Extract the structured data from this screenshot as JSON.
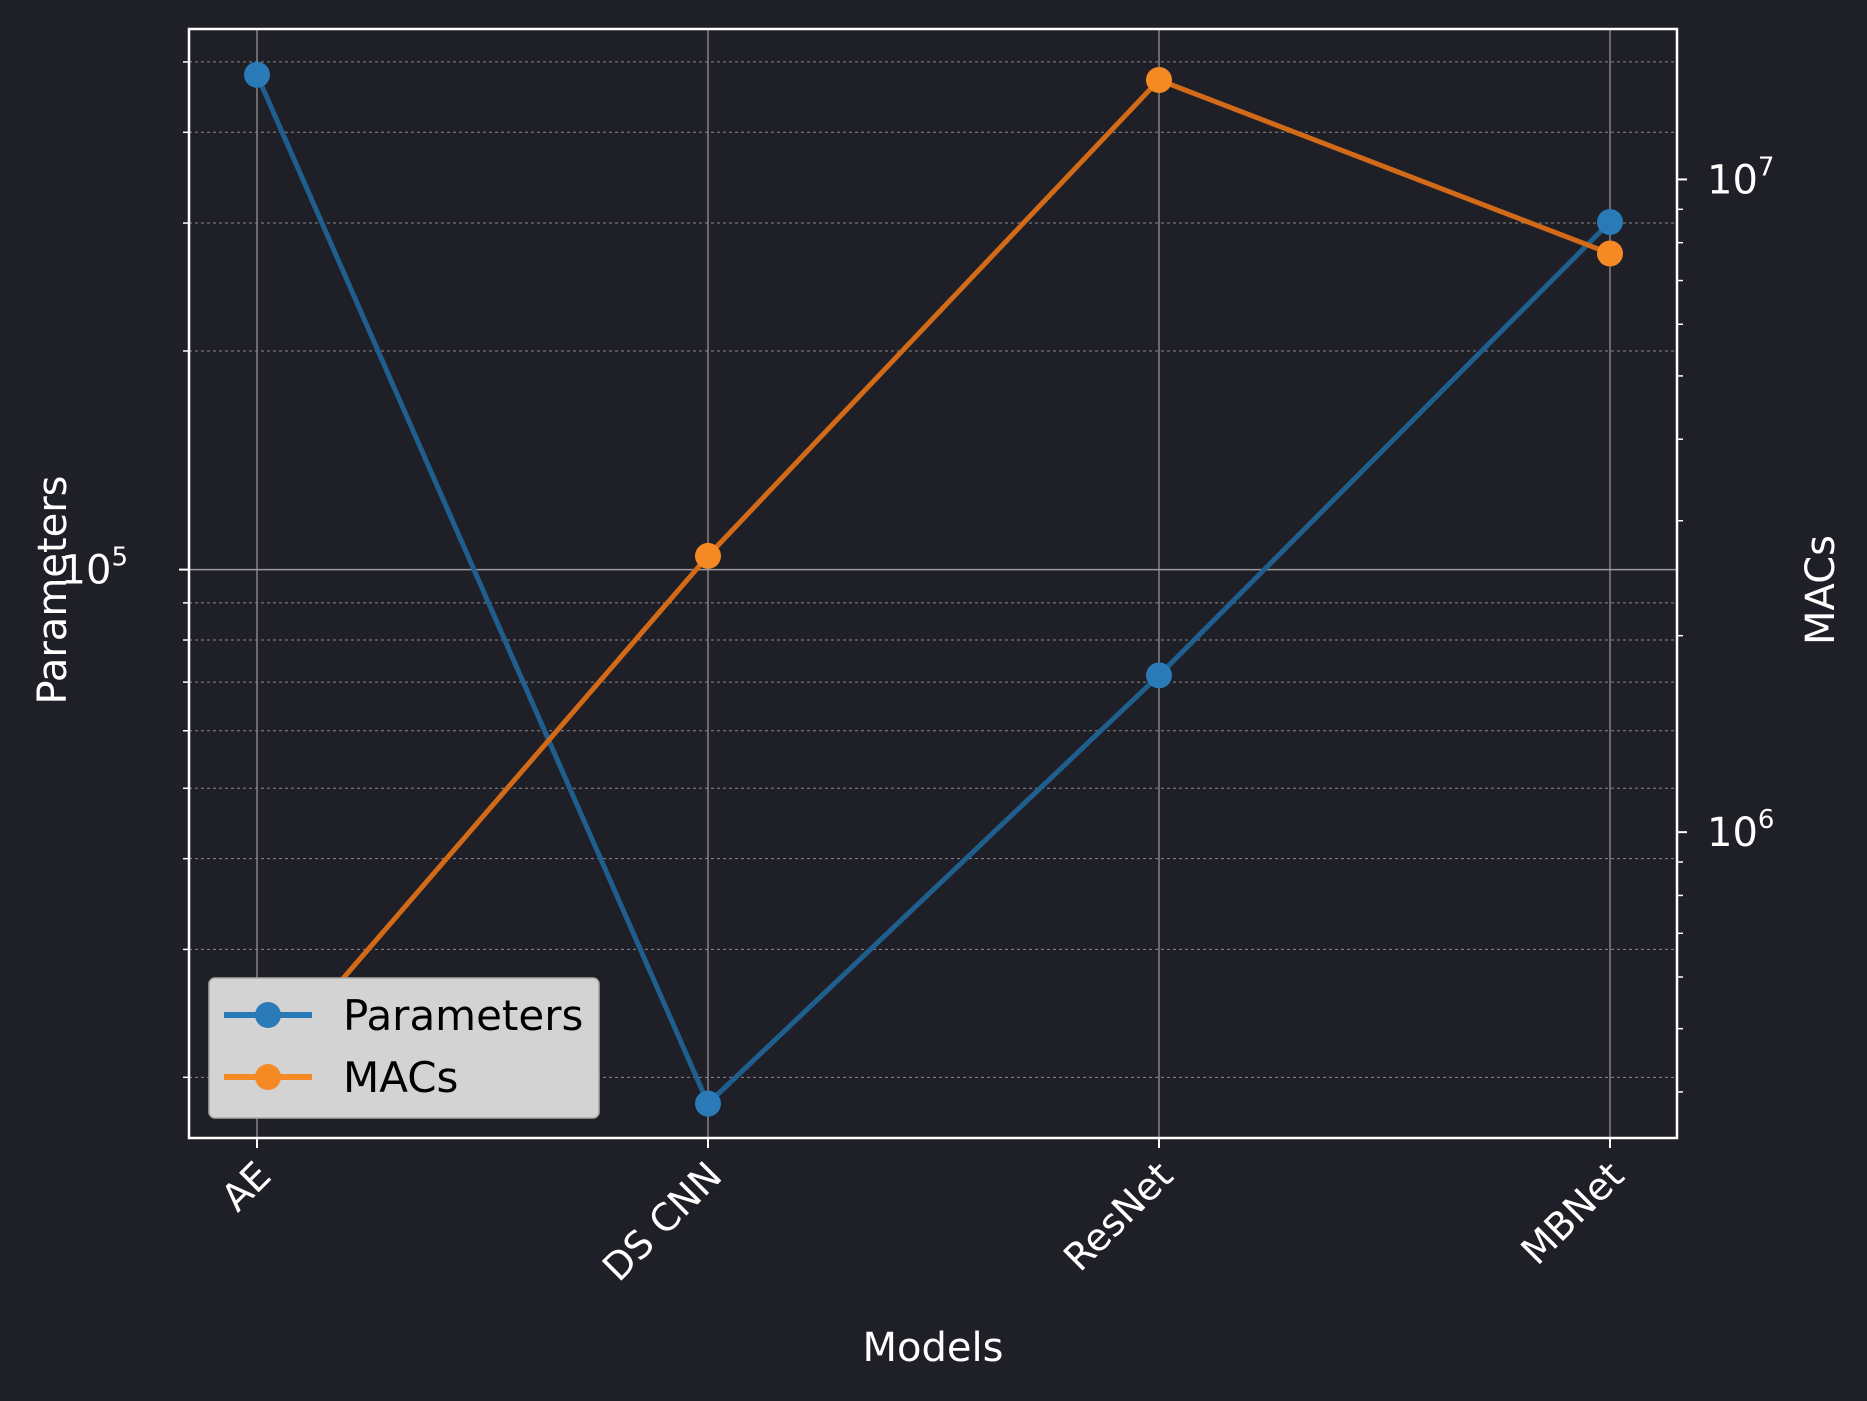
{
  "chart_data": {
    "type": "line",
    "categories": [
      "AE",
      "DS CNN",
      "ResNet",
      "MBNet"
    ],
    "xlabel": "Models",
    "ylabel_left": "Parameters",
    "ylabel_right": "MACs",
    "left_axis": {
      "scale": "log",
      "ylim": [
        16500,
        555000
      ],
      "major_tick": "10^5"
    },
    "right_axis": {
      "scale": "log",
      "ylim": [
        340000,
        17000000
      ],
      "major_ticks": [
        "10^6",
        "10^7"
      ]
    },
    "series": [
      {
        "name": "Parameters",
        "axis": "left",
        "color": "#1f77b4",
        "values": [
          480000,
          18400,
          71500,
          301000
        ]
      },
      {
        "name": "MACs",
        "axis": "right",
        "color": "#ff7f0e",
        "values": [
          420000,
          2650000,
          14200000,
          7700000
        ]
      }
    ],
    "grid": true,
    "legend": {
      "position": "lower-left",
      "entries": [
        "Parameters",
        "MACs"
      ]
    },
    "background": "#1e1f27",
    "foreground": "#ffffff"
  }
}
